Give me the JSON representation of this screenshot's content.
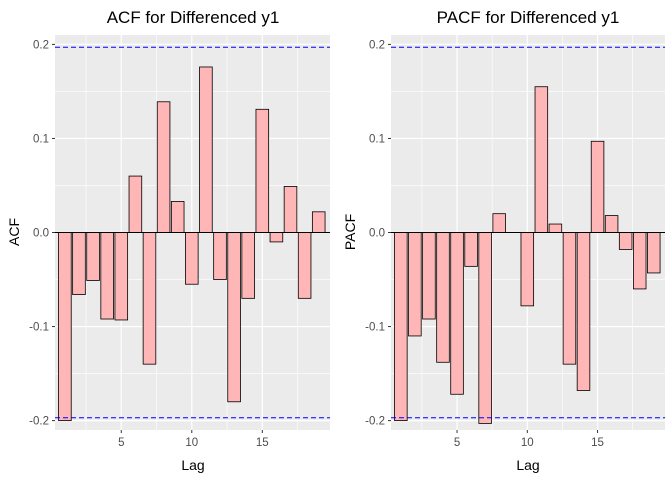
{
  "chart_data": [
    {
      "type": "bar",
      "title": "ACF for Differenced y1",
      "xlabel": "Lag",
      "ylabel": "ACF",
      "x": [
        1,
        2,
        3,
        4,
        5,
        6,
        7,
        8,
        9,
        10,
        11,
        12,
        13,
        14,
        15,
        16,
        17,
        18,
        19
      ],
      "values": [
        -0.2,
        -0.066,
        -0.051,
        -0.092,
        -0.093,
        0.06,
        -0.14,
        0.139,
        0.033,
        -0.055,
        0.176,
        -0.05,
        -0.18,
        -0.07,
        0.131,
        -0.01,
        0.049,
        -0.07,
        0.022
      ],
      "confidence_bound": 0.197,
      "xlim": [
        0.3,
        19.8
      ],
      "ylim": [
        -0.21,
        0.21
      ],
      "xticks": [
        5,
        10,
        15
      ],
      "yticks": [
        -0.2,
        -0.1,
        0.0,
        0.1,
        0.2
      ],
      "ytick_labels": [
        "-0.2",
        "-0.1",
        "0.0",
        "0.1",
        "0.2"
      ],
      "grid": true,
      "colors": {
        "bar_fill": "#ffb6b6",
        "bar_stroke": "#000000",
        "bound_line": "#0000ff",
        "panel_bg": "#ebebeb",
        "grid": "#ffffff"
      }
    },
    {
      "type": "bar",
      "title": "PACF for Differenced y1",
      "xlabel": "Lag",
      "ylabel": "PACF",
      "x": [
        1,
        2,
        3,
        4,
        5,
        6,
        7,
        8,
        9,
        10,
        11,
        12,
        13,
        14,
        15,
        16,
        17,
        18,
        19
      ],
      "values": [
        -0.2,
        -0.11,
        -0.092,
        -0.138,
        -0.172,
        -0.036,
        -0.203,
        0.02,
        0.0,
        -0.078,
        0.155,
        0.009,
        -0.14,
        -0.168,
        0.097,
        0.018,
        -0.018,
        -0.06,
        -0.043
      ],
      "confidence_bound": 0.197,
      "xlim": [
        0.3,
        19.8
      ],
      "ylim": [
        -0.21,
        0.21
      ],
      "xticks": [
        5,
        10,
        15
      ],
      "yticks": [
        -0.2,
        -0.1,
        0.0,
        0.1,
        0.2
      ],
      "ytick_labels": [
        "-0.2",
        "-0.1",
        "0.0",
        "0.1",
        "0.2"
      ],
      "grid": true,
      "colors": {
        "bar_fill": "#ffb6b6",
        "bar_stroke": "#000000",
        "bound_line": "#0000ff",
        "panel_bg": "#ebebeb",
        "grid": "#ffffff"
      }
    }
  ]
}
